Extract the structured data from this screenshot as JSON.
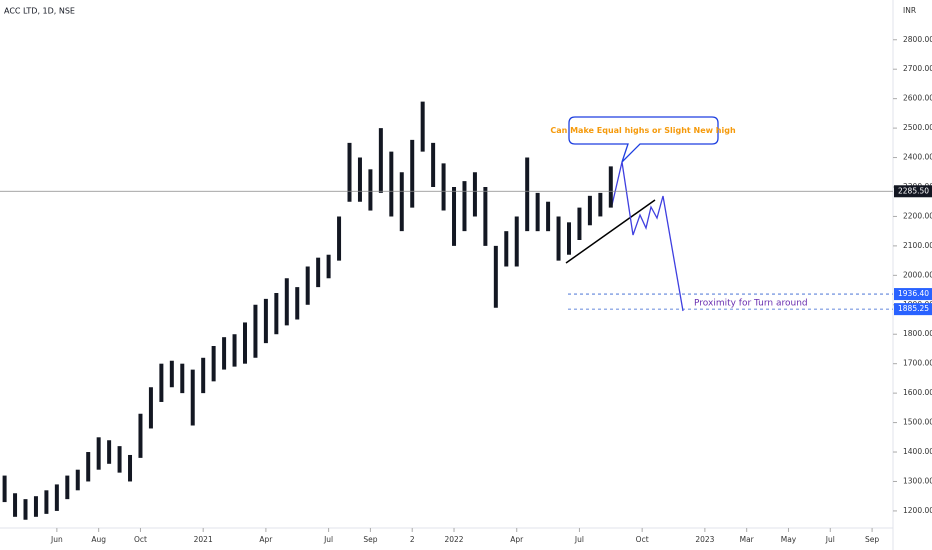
{
  "header": {
    "symbol": "ACC LTD, 1D, NSE",
    "currency": "INR"
  },
  "chart_data": {
    "type": "candlestick",
    "x": [
      2.5,
      3,
      3.5,
      4,
      4.5,
      5,
      5.5,
      6,
      6.5,
      7,
      7.5,
      8,
      8.5,
      9,
      9.5,
      10,
      10.5,
      11,
      11.5,
      12,
      12.5,
      13,
      13.5,
      14,
      14.5,
      15,
      15.5,
      16,
      16.5,
      17,
      17.5,
      18,
      18.5,
      19,
      19.5,
      20,
      20.5,
      21,
      21.5,
      22,
      22.5,
      23,
      23.5,
      24,
      24.5,
      25,
      25.5,
      26,
      26.5,
      27,
      27.5,
      28,
      28.5,
      29,
      29.5,
      30,
      30.5,
      31,
      31.5
    ],
    "low": [
      1230,
      1180,
      1170,
      1180,
      1190,
      1200,
      1240,
      1270,
      1300,
      1340,
      1360,
      1330,
      1300,
      1380,
      1480,
      1570,
      1620,
      1600,
      1490,
      1600,
      1640,
      1680,
      1690,
      1700,
      1720,
      1770,
      1800,
      1830,
      1850,
      1900,
      1960,
      1990,
      2050,
      2250,
      2250,
      2220,
      2280,
      2200,
      2150,
      2230,
      2420,
      2300,
      2220,
      2100,
      2150,
      2200,
      2100,
      1890,
      2030,
      2030,
      2150,
      2150,
      2150,
      2050,
      2070,
      2120,
      2170,
      2200,
      2230
    ],
    "high": [
      1320,
      1260,
      1240,
      1250,
      1270,
      1290,
      1320,
      1340,
      1400,
      1450,
      1440,
      1420,
      1390,
      1530,
      1620,
      1700,
      1710,
      1700,
      1680,
      1720,
      1760,
      1790,
      1800,
      1840,
      1900,
      1920,
      1940,
      1990,
      1960,
      2030,
      2060,
      2070,
      2200,
      2450,
      2400,
      2360,
      2500,
      2420,
      2350,
      2460,
      2590,
      2450,
      2380,
      2300,
      2320,
      2350,
      2300,
      2100,
      2150,
      2200,
      2400,
      2280,
      2250,
      2200,
      2180,
      2230,
      2270,
      2280,
      2370
    ],
    "color": "#131722",
    "xlim": [
      2.28,
      45
    ],
    "ylim": [
      1142,
      2935
    ],
    "xticks": [
      {
        "value": 5,
        "label": "Jun"
      },
      {
        "value": 7,
        "label": "Aug"
      },
      {
        "value": 9,
        "label": "Oct"
      },
      {
        "value": 12,
        "label": "2021"
      },
      {
        "value": 15,
        "label": "Apr"
      },
      {
        "value": 18,
        "label": "Jul"
      },
      {
        "value": 20,
        "label": "Sep"
      },
      {
        "value": 22,
        "label": "2"
      },
      {
        "value": 24,
        "label": "2022"
      },
      {
        "value": 27,
        "label": "Apr"
      },
      {
        "value": 30,
        "label": "Jul"
      },
      {
        "value": 33,
        "label": "Oct"
      },
      {
        "value": 36,
        "label": "2023"
      },
      {
        "value": 38,
        "label": "Mar"
      },
      {
        "value": 40,
        "label": "May"
      },
      {
        "value": 42,
        "label": "Jul"
      },
      {
        "value": 44,
        "label": "Sep"
      }
    ],
    "yticks": [
      {
        "value": 1200,
        "label": "1200.00"
      },
      {
        "value": 1300,
        "label": "1300.00"
      },
      {
        "value": 1400,
        "label": "1400.00"
      },
      {
        "value": 1500,
        "label": "1500.00"
      },
      {
        "value": 1600,
        "label": "1600.00"
      },
      {
        "value": 1700,
        "label": "1700.00"
      },
      {
        "value": 1800,
        "label": "1800.00"
      },
      {
        "value": 1900,
        "label": "1900.00"
      },
      {
        "value": 2000,
        "label": "2000.00"
      },
      {
        "value": 2100,
        "label": "2100.00"
      },
      {
        "value": 2200,
        "label": "2200.00"
      },
      {
        "value": 2300,
        "label": "2300.00"
      },
      {
        "value": 2400,
        "label": "2400.00"
      },
      {
        "value": 2500,
        "label": "2500.00"
      },
      {
        "value": 2600,
        "label": "2600.00"
      },
      {
        "value": 2700,
        "label": "2700.00"
      },
      {
        "value": 2800,
        "label": "2800.00"
      }
    ],
    "last_price": {
      "value": 2285.5,
      "label": "2285.50"
    },
    "levels": [
      {
        "value": 1936.4,
        "label": "1936.40"
      },
      {
        "value": 1885.25,
        "label": "1885.25"
      }
    ],
    "annotations": {
      "callout": "Can Make Equal highs or Slight New high",
      "note": "Proximity for Turn around"
    }
  }
}
